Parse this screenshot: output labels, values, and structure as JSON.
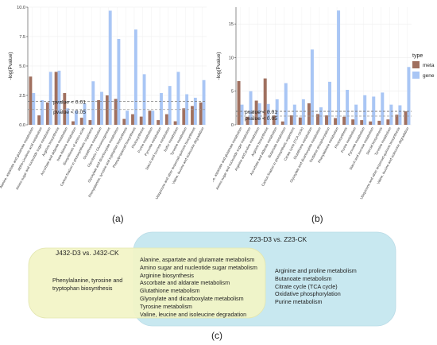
{
  "labels": {
    "panel_a": "(a)",
    "panel_b": "(b)",
    "panel_c": "(c)",
    "ylabel": "-log(Pvalue)",
    "legend_title": "type",
    "legend_meta": "meta",
    "legend_gene": "gene",
    "p01": "pvalue < 0.01",
    "p05": "pvalue < 0.05"
  },
  "colors": {
    "meta": "#a0705f",
    "gene": "#a9c6f5",
    "line01": "#7a7a7a",
    "line05": "#9a9a9a",
    "venn_left": "#f2f4c6",
    "venn_right": "#c8e8f0",
    "panel_bg": "#ffffff",
    "grid": "#eeeeee"
  },
  "chart_data": [
    {
      "type": "bar",
      "ylabel": "-log(Pvalue)",
      "ylim": [
        0,
        10
      ],
      "yticks": [
        0.0,
        2.5,
        5.0,
        7.5,
        10.0
      ],
      "ytick_labels": [
        "0.0",
        "2.5",
        "5.0",
        "7.5",
        "10.0"
      ],
      "thresholds": [
        2.0,
        1.3
      ],
      "categories": [
        "Alanine, aspartate and glutamate metabolism",
        "alpha-Linolenic acid metabolism",
        "Amino sugar and nucleotide sugar metabolism",
        "Arginine biosynthesis",
        "Ascorbate and aldarate metabolism",
        "beta-Alanine metabolism",
        "Biosynthesis of amino acids",
        "Carbon fixation in photosynthetic organisms",
        "Glutathione metabolism",
        "Glycolysis / Gluconeogenesis",
        "Glyoxylate and dicarboxylate metabolism",
        "Phenylalanine, tyrosine and tryptophan biosynthesis",
        "Phenylpropanoid biosynthesis",
        "Photosynthesis",
        "Purine metabolism",
        "Pyruvate metabolism",
        "Starch and sucrose metabolism",
        "Sulfur metabolism",
        "Tyrosine metabolism",
        "Ubiquinone and other terpenoid-quinone biosynthesis",
        "Valine, leucine and isoleucine degradation"
      ],
      "series": [
        {
          "name": "meta",
          "values": [
            4.1,
            0.8,
            1.9,
            4.5,
            2.7,
            0.3,
            0.6,
            0.4,
            2.1,
            2.5,
            2.2,
            0.5,
            0.9,
            0.7,
            1.2,
            0.4,
            0.9,
            0.3,
            1.4,
            1.6,
            1.9
          ]
        },
        {
          "name": "gene",
          "values": [
            2.7,
            2.1,
            4.5,
            4.6,
            1.4,
            1.2,
            1.8,
            3.7,
            2.8,
            9.7,
            7.3,
            1.2,
            8.1,
            4.3,
            1.2,
            2.7,
            3.3,
            4.5,
            2.6,
            2.3,
            3.8
          ]
        }
      ]
    },
    {
      "type": "bar",
      "ylabel": "-log(Pvalue)",
      "ylim": [
        0,
        17.5
      ],
      "yticks": [
        0,
        5,
        10,
        15
      ],
      "ytick_labels": [
        "0",
        "5",
        "10",
        "15"
      ],
      "thresholds": [
        2.0,
        1.3
      ],
      "legend": {
        "title": "type",
        "entries": [
          "meta",
          "gene"
        ],
        "position": "right"
      },
      "categories": [
        "Alanine, aspartate and glutamate metabolism",
        "Amino sugar and nucleotide sugar metabolism",
        "Arginine and proline metabolism",
        "Arginine biosynthesis",
        "Ascorbate and aldarate metabolism",
        "Butanoate metabolism",
        "Carbon fixation in photosynthetic organisms",
        "Citrate cycle (TCA cycle)",
        "Glutathione metabolism",
        "Glyoxylate and dicarboxylate metabolism",
        "Oxidative phosphorylation",
        "Phenylalanine metabolism",
        "Photosynthesis",
        "Purine metabolism",
        "Pyruvate metabolism",
        "Starch and sucrose metabolism",
        "Steroid biosynthesis",
        "Tyrosine metabolism",
        "Ubiquinone and other terpenoid-quinone biosynthesis",
        "Valine, leucine and isoleucine degradation"
      ],
      "series": [
        {
          "name": "meta",
          "values": [
            6.5,
            1.2,
            3.6,
            6.9,
            1.4,
            0.5,
            1.4,
            1.1,
            3.2,
            1.6,
            1.4,
            1.0,
            1.2,
            0.8,
            0.7,
            0.5,
            0.6,
            0.8,
            1.5,
            2.0
          ]
        },
        {
          "name": "gene",
          "values": [
            3.0,
            5.0,
            3.2,
            3.1,
            3.8,
            6.2,
            3.0,
            3.8,
            11.2,
            2.6,
            6.4,
            17.0,
            5.2,
            3.0,
            4.4,
            4.2,
            4.8,
            3.0,
            2.9,
            8.6
          ]
        }
      ]
    }
  ],
  "venn": {
    "left_title": "J432-D3 vs. J432-CK",
    "right_title": "Z23-D3 vs. Z23-CK",
    "left_only": [
      "Phenylalanine, tyrosine and",
      "tryptophan biosynthesis"
    ],
    "shared": [
      "Alanine, aspartate and glutamate metabolism",
      "Amino sugar and nucleotide sugar metabolism",
      "Arginine biosynthesis",
      "Ascorbate and aldarate metabolism",
      "Glutathione metabolism",
      "Glyoxylate and dicarboxylate metabolism",
      "Tyrosine metabolism",
      "Valine, leucine and isoleucine degradation"
    ],
    "right_only": [
      "Arginine and proline metabolism",
      "Butanoate metabolism",
      "Citrate cycle (TCA cycle)",
      "Oxidative phosphorylation",
      "Purine metabolism"
    ]
  }
}
